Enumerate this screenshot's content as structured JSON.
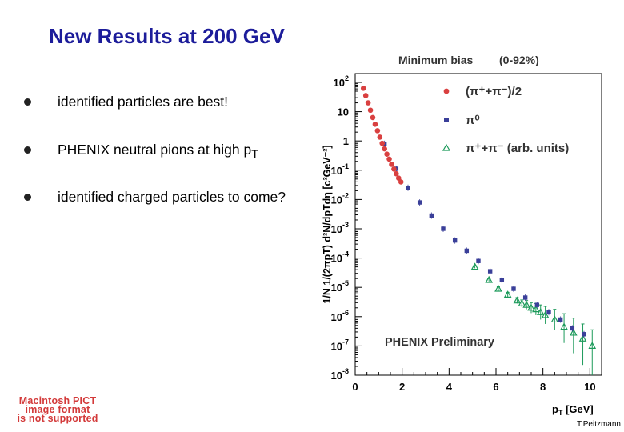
{
  "slide": {
    "title": "New Results at 200 GeV",
    "bullets": [
      {
        "text": "identified particles are best!",
        "sub": ""
      },
      {
        "text": "PHENIX neutral pions at high p",
        "sub": "T"
      },
      {
        "text": "identified charged particles to come?",
        "sub": ""
      }
    ],
    "pict_placeholder": [
      "Macintosh PICT",
      "image format",
      "is not supported"
    ],
    "credit": "T.Peitzmann"
  },
  "colors": {
    "title": "#1c1c9a",
    "charged": "#d94040",
    "pi0": "#3a3f99",
    "arb": "#1c9a5a",
    "pict": "#d33a3a"
  },
  "chart_data": {
    "type": "scatter",
    "title": "Minimum bias",
    "centrality": "(0-92%)",
    "xlabel_main": "p",
    "xlabel_sub": "T",
    "xlabel_unit": "[GeV]",
    "ylabel": "1/N 1/(2πpT) d²N/dpTdη [c²GeV⁻²]",
    "annotation": "PHENIX Preliminary",
    "xlim": [
      0,
      10.5
    ],
    "ylim_log10": [
      -8,
      2.3
    ],
    "xticks": [
      "0",
      "2",
      "4",
      "6",
      "8",
      "10"
    ],
    "xtick_values": [
      0,
      2,
      4,
      6,
      8,
      10
    ],
    "yticks": [
      {
        "exp": 2,
        "base": "10",
        "sup": "2"
      },
      {
        "exp": 1,
        "base": "10",
        "sup": ""
      },
      {
        "exp": 0,
        "base": "1",
        "sup": ""
      },
      {
        "exp": -1,
        "base": "10",
        "sup": "-1"
      },
      {
        "exp": -2,
        "base": "10",
        "sup": "-2"
      },
      {
        "exp": -3,
        "base": "10",
        "sup": "-3"
      },
      {
        "exp": -4,
        "base": "10",
        "sup": "-4"
      },
      {
        "exp": -5,
        "base": "10",
        "sup": "-5"
      },
      {
        "exp": -6,
        "base": "10",
        "sup": "-6"
      },
      {
        "exp": -7,
        "base": "10",
        "sup": "-7"
      },
      {
        "exp": -8,
        "base": "10",
        "sup": "-8"
      }
    ],
    "legend": [
      {
        "label": "(π⁺+π⁻)/2",
        "marker": "circle",
        "series": "charged"
      },
      {
        "label": "π⁰",
        "marker": "square",
        "series": "pi0"
      },
      {
        "label": "π⁺+π⁻   (arb. units)",
        "marker": "triangle",
        "series": "arb"
      }
    ],
    "series": [
      {
        "name": "(π⁺+π⁻)/2",
        "marker": "circle",
        "x": [
          0.35,
          0.45,
          0.55,
          0.65,
          0.75,
          0.85,
          0.95,
          1.05,
          1.15,
          1.25,
          1.35,
          1.45,
          1.55,
          1.65,
          1.75,
          1.85,
          1.95
        ],
        "log10y": [
          1.8,
          1.55,
          1.3,
          1.05,
          0.8,
          0.57,
          0.35,
          0.13,
          -0.08,
          -0.27,
          -0.45,
          -0.62,
          -0.8,
          -0.96,
          -1.12,
          -1.27,
          -1.4
        ]
      },
      {
        "name": "π⁰",
        "marker": "square",
        "x": [
          1.25,
          1.75,
          2.25,
          2.75,
          3.25,
          3.75,
          4.25,
          4.75,
          5.25,
          5.75,
          6.25,
          6.75,
          7.25,
          7.75,
          8.25,
          8.75,
          9.25,
          9.75
        ],
        "log10y": [
          -0.1,
          -0.95,
          -1.6,
          -2.1,
          -2.55,
          -3.0,
          -3.4,
          -3.75,
          -4.1,
          -4.45,
          -4.75,
          -5.05,
          -5.35,
          -5.6,
          -5.85,
          -6.1,
          -6.4,
          -6.6
        ]
      },
      {
        "name": "π⁺+π⁻ (arb. units)",
        "marker": "triangle",
        "x": [
          5.1,
          5.7,
          6.1,
          6.5,
          6.9,
          7.1,
          7.3,
          7.5,
          7.7,
          7.9,
          8.1,
          8.5,
          8.9,
          9.3,
          9.7,
          10.1
        ],
        "log10y": [
          -4.3,
          -4.75,
          -5.05,
          -5.25,
          -5.45,
          -5.55,
          -5.6,
          -5.7,
          -5.75,
          -5.85,
          -5.95,
          -6.1,
          -6.35,
          -6.55,
          -6.75,
          -7.0
        ],
        "err_lo": [
          0.05,
          0.05,
          0.07,
          0.08,
          0.1,
          0.12,
          0.15,
          0.18,
          0.2,
          0.25,
          0.3,
          0.35,
          0.55,
          0.7,
          0.9,
          1.0
        ],
        "err_hi": [
          0.05,
          0.05,
          0.07,
          0.08,
          0.1,
          0.12,
          0.15,
          0.18,
          0.2,
          0.25,
          0.3,
          0.35,
          0.45,
          0.5,
          0.5,
          0.55
        ]
      }
    ]
  }
}
